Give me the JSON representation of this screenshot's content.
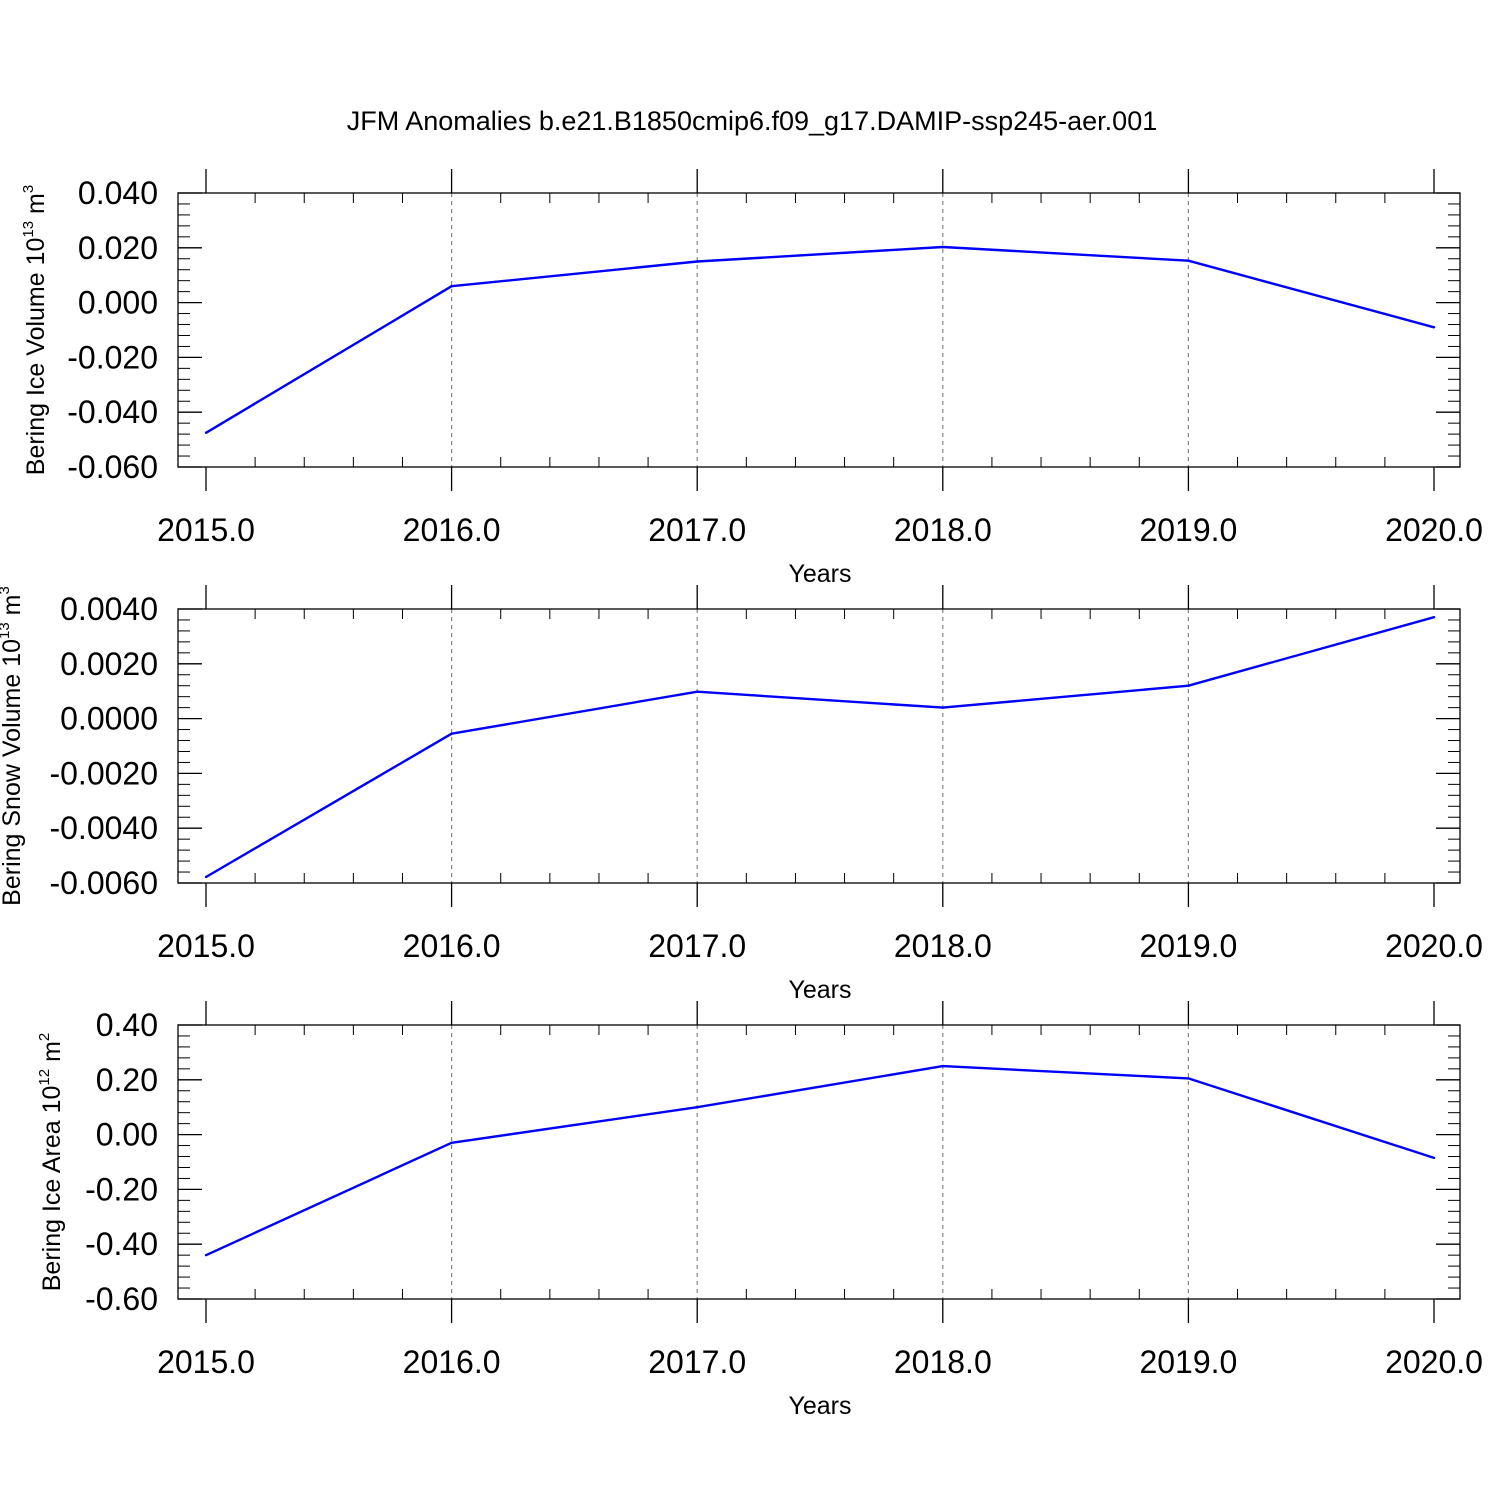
{
  "title": "JFM Anomalies b.e21.B1850cmip6.f09_g17.DAMIP-ssp245-aer.001",
  "colors": {
    "line": "#0000ff",
    "axis": "#000000",
    "grid": "#888888"
  },
  "chart_data": [
    {
      "type": "line",
      "x": [
        2015,
        2016,
        2017,
        2018,
        2019,
        2020
      ],
      "series": [
        {
          "values": [
            -0.0475,
            0.006,
            0.015,
            0.0203,
            0.0153,
            -0.009
          ],
          "color": "#0000ff"
        }
      ],
      "xlabel": "Years",
      "ylabel": {
        "text": "Bering Ice Volume 10",
        "sup": "13",
        "unit": "m",
        "unit_sup": "3"
      },
      "xlim": [
        2015,
        2020
      ],
      "ylim": [
        -0.06,
        0.04
      ],
      "xticks": [
        2015,
        2016,
        2017,
        2018,
        2019,
        2020
      ],
      "xtick_labels": [
        "2015.0",
        "2016.0",
        "2017.0",
        "2018.0",
        "2019.0",
        "2020.0"
      ],
      "yticks": [
        0.04,
        0.02,
        0.0,
        -0.02,
        -0.04,
        -0.06
      ],
      "ytick_labels": [
        "0.040",
        "0.020",
        "0.000",
        "-0.020",
        "-0.040",
        "-0.060"
      ],
      "grid": "vertical dashed"
    },
    {
      "type": "line",
      "x": [
        2015,
        2016,
        2017,
        2018,
        2019,
        2020
      ],
      "series": [
        {
          "values": [
            -0.00578,
            -0.00055,
            0.00098,
            0.0004,
            0.0012,
            0.0037
          ],
          "color": "#0000ff"
        }
      ],
      "xlabel": "Years",
      "ylabel": {
        "text": "Bering Snow Volume 10",
        "sup": "13",
        "unit": "m",
        "unit_sup": "3"
      },
      "xlim": [
        2015,
        2020
      ],
      "ylim": [
        -0.006,
        0.004
      ],
      "xticks": [
        2015,
        2016,
        2017,
        2018,
        2019,
        2020
      ],
      "xtick_labels": [
        "2015.0",
        "2016.0",
        "2017.0",
        "2018.0",
        "2019.0",
        "2020.0"
      ],
      "yticks": [
        0.004,
        0.002,
        0.0,
        -0.002,
        -0.004,
        -0.006
      ],
      "ytick_labels": [
        "0.0040",
        "0.0020",
        "0.0000",
        "-0.0020",
        "-0.0040",
        "-0.0060"
      ],
      "grid": "vertical dashed"
    },
    {
      "type": "line",
      "x": [
        2015,
        2016,
        2017,
        2018,
        2019,
        2020
      ],
      "series": [
        {
          "values": [
            -0.44,
            -0.03,
            0.1,
            0.25,
            0.205,
            -0.085
          ],
          "color": "#0000ff"
        }
      ],
      "xlabel": "Years",
      "ylabel": {
        "text": "Bering Ice Area 10",
        "sup": "12",
        "unit": "m",
        "unit_sup": "2"
      },
      "xlim": [
        2015,
        2020
      ],
      "ylim": [
        -0.6,
        0.4
      ],
      "xticks": [
        2015,
        2016,
        2017,
        2018,
        2019,
        2020
      ],
      "xtick_labels": [
        "2015.0",
        "2016.0",
        "2017.0",
        "2018.0",
        "2019.0",
        "2020.0"
      ],
      "yticks": [
        0.4,
        0.2,
        0.0,
        -0.2,
        -0.4,
        -0.6
      ],
      "ytick_labels": [
        "0.40",
        "0.20",
        "0.00",
        "-0.20",
        "-0.40",
        "-0.60"
      ],
      "grid": "vertical dashed"
    }
  ]
}
